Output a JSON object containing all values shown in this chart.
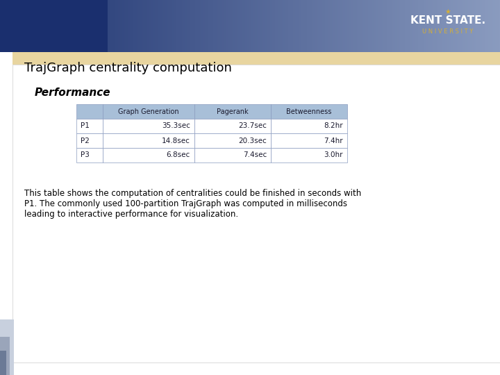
{
  "title": "TrajGraph centrality computation",
  "subtitle": "Performance",
  "table_headers": [
    "",
    "Graph Generation",
    "Pagerank",
    "Betweenness"
  ],
  "table_rows": [
    [
      "P1",
      "35.3sec",
      "23.7sec",
      "8.2hr"
    ],
    [
      "P2",
      "14.8sec",
      "20.3sec",
      "7.4hr"
    ],
    [
      "P3",
      "6.8sec",
      "7.4sec",
      "3.0hr"
    ]
  ],
  "body_text_line1": "This table shows the computation of centralities could be finished in seconds with",
  "body_text_line2": "P1. The commonly used 100-partition TrajGraph was computed in milliseconds",
  "body_text_line3": "leading to interactive performance for visualization.",
  "header_bg": "#1a2f6e",
  "gold_bar_color": "#e8d5a0",
  "table_header_bg": "#a8bfd8",
  "table_header_text": "#1a1a2e",
  "table_border_color": "#8a9bbf",
  "title_color": "#000000",
  "subtitle_color": "#000000",
  "body_text_color": "#000000",
  "background_color": "#ffffff",
  "left_panel_colors": [
    "#c8d0de",
    "#9aa5ba",
    "#6b7a96"
  ],
  "header_navy": [
    0.102,
    0.188,
    0.431
  ],
  "header_silver": [
    0.541,
    0.608,
    0.749
  ]
}
